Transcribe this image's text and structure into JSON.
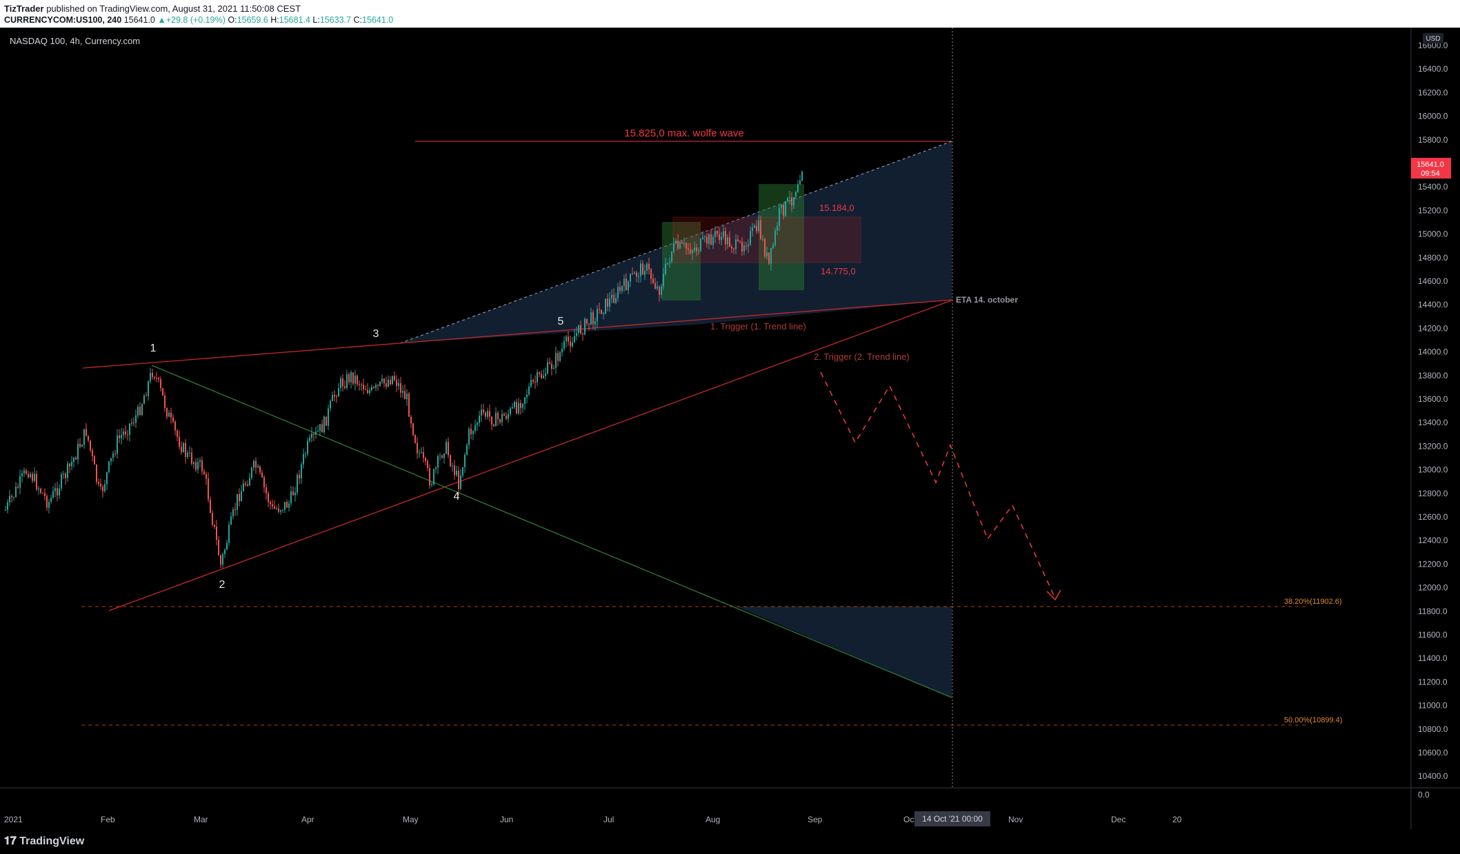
{
  "header": {
    "author": "TizTrader",
    "published_text": "published on TradingView.com, August 31, 2021 11:50:08 CEST",
    "symbol": "CURRENCYCOM:US100, 240",
    "last": "15641.0",
    "change": "+29.8 (+0.19%)",
    "o_label": "O:",
    "o_value": "15659.6",
    "h_label": "H:",
    "h_value": "15681.4",
    "l_label": "L:",
    "l_value": "15633.7",
    "c_label": "C:",
    "c_value": "15641.0"
  },
  "chart": {
    "title": "NASDAQ 100, 4h, Currency.com",
    "currency": "USD",
    "price_ticks": [
      "16600.0",
      "16400.0",
      "16200.0",
      "16000.0",
      "15800.0",
      "15600.0",
      "15400.0",
      "15200.0",
      "15000.0",
      "14800.0",
      "14600.0",
      "14400.0",
      "14200.0",
      "14000.0",
      "13800.0",
      "13600.0",
      "13400.0",
      "13200.0",
      "13000.0",
      "12800.0",
      "12600.0",
      "12400.0",
      "12200.0",
      "12000.0",
      "11800.0",
      "11600.0",
      "11400.0",
      "11200.0",
      "11000.0",
      "10800.0",
      "10600.0",
      "10400.0",
      "0.0"
    ],
    "time_ticks": [
      "2021",
      "Feb",
      "Mar",
      "Apr",
      "May",
      "Jun",
      "Jul",
      "Aug",
      "Sep",
      "Oct",
      "Nov",
      "Dec",
      "20"
    ],
    "crosshair_time_label": "14 Oct '21   00:00",
    "price_badge_value": "15641.0",
    "price_badge_timer": "09:54",
    "annotations": {
      "wolfe_max": "15.825,0 max. wolfe wave",
      "box_top": "15.184,0",
      "box_bottom": "14.775,0",
      "eta": "ETA 14. october",
      "trigger1": "1. Trigger (1. Trend line)",
      "trigger2": "2. Trigger (2. Trend line)",
      "wave_labels": [
        "1",
        "2",
        "3",
        "4",
        "5"
      ],
      "fib_382": "38.20%(11902.6)",
      "fib_50": "50.00%(10899.4)"
    },
    "colors": {
      "up": "#26a69a",
      "down": "#ef5350",
      "annotation_red": "#f23645",
      "fib_orange": "#ff9800",
      "wedge_fill": "#1a2a44",
      "trendline_green": "#2e7d32"
    }
  },
  "footer": {
    "brand": "TradingView"
  }
}
